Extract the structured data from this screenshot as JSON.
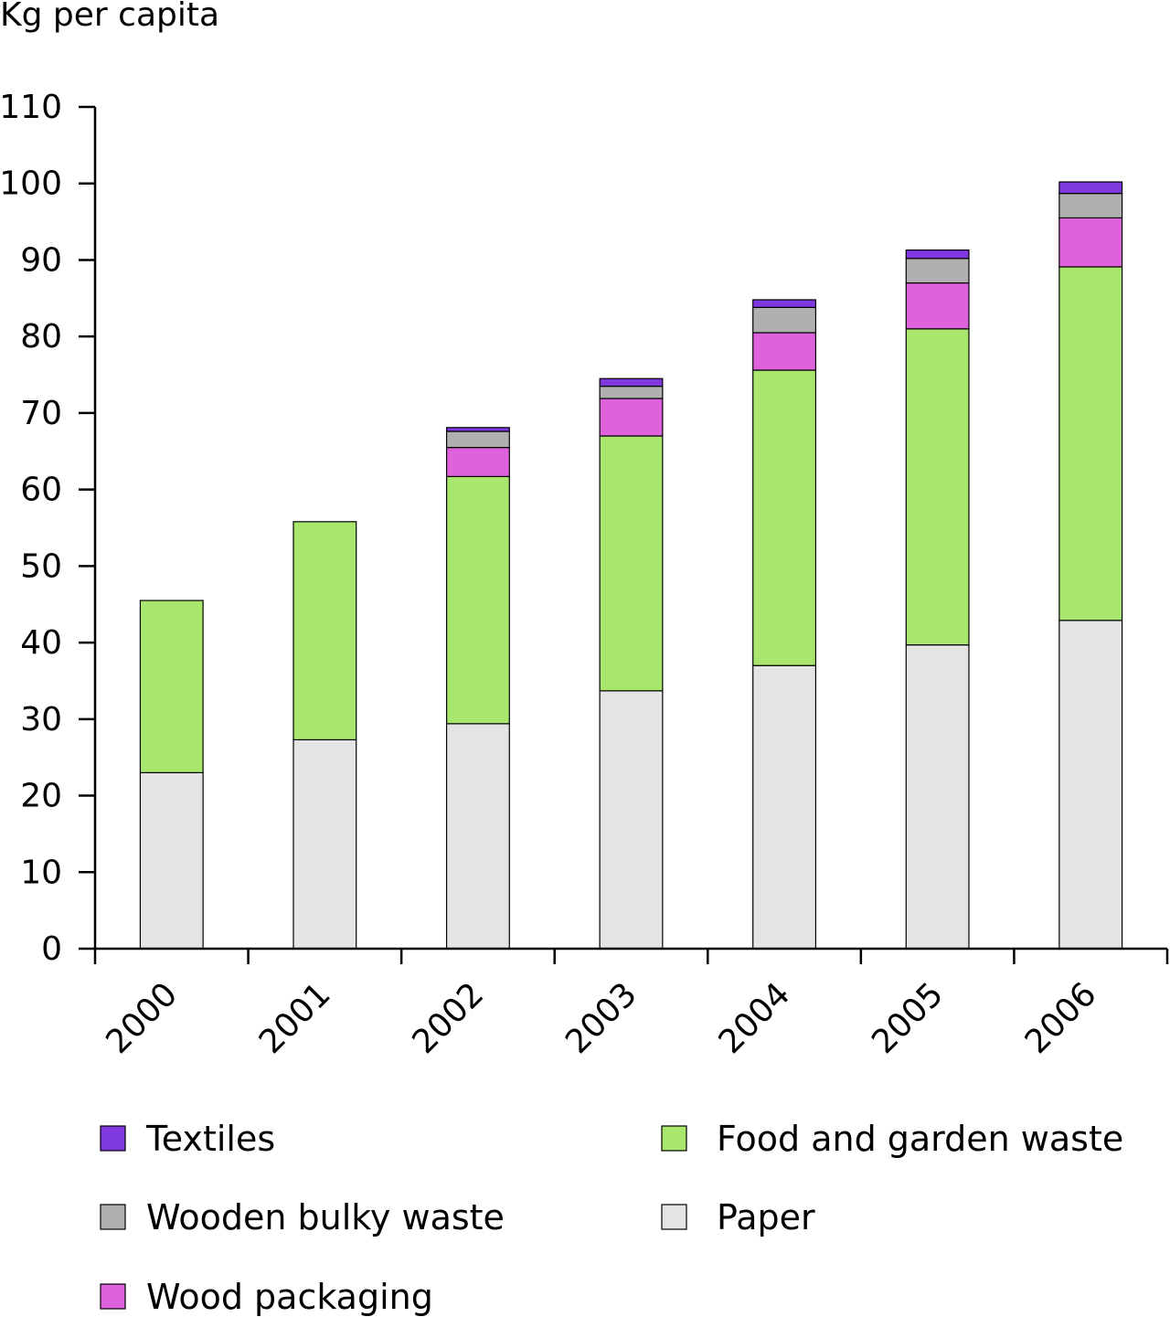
{
  "chart_data": {
    "type": "bar",
    "stacked": true,
    "ylabel": "Kg per capita",
    "xlabel": "",
    "ylim": [
      0,
      110
    ],
    "yticks": [
      0,
      10,
      20,
      30,
      40,
      50,
      60,
      70,
      80,
      90,
      100,
      110
    ],
    "categories": [
      "2000",
      "2001",
      "2002",
      "2003",
      "2004",
      "2005",
      "2006"
    ],
    "series": [
      {
        "name": "Paper",
        "color": "#e4e4e4",
        "values": [
          23,
          27.3,
          29.4,
          33.7,
          37,
          39.7,
          42.9
        ]
      },
      {
        "name": "Food and garden waste",
        "color": "#a8e66e",
        "values": [
          22.5,
          28.5,
          32.3,
          33.3,
          38.6,
          41.3,
          46.2
        ]
      },
      {
        "name": "Wood packaging",
        "color": "#de62dc",
        "values": [
          0,
          0,
          3.8,
          4.9,
          4.9,
          6,
          6.4
        ]
      },
      {
        "name": "Wooden bulky waste",
        "color": "#b0b0b0",
        "values": [
          0,
          0,
          2.1,
          1.6,
          3.3,
          3.2,
          3.2
        ]
      },
      {
        "name": "Textiles",
        "color": "#7e38dd",
        "values": [
          0,
          0,
          0.5,
          1,
          1,
          1.1,
          1.5
        ]
      }
    ],
    "legend": {
      "placement": "bottom",
      "order": [
        "Textiles",
        "Food and garden waste",
        "Wooden bulky waste",
        "Paper",
        "Wood packaging"
      ]
    },
    "grid": false
  }
}
